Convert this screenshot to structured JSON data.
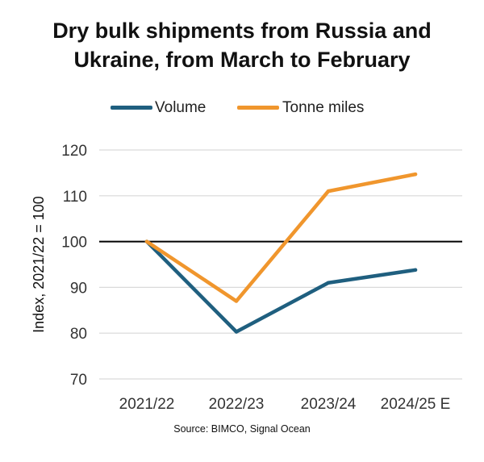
{
  "chart_data": {
    "type": "line",
    "title": "Dry bulk shipments from Russia and Ukraine, from March to February",
    "title_lines": [
      "Dry bulk shipments from Russia and",
      "Ukraine, from March to February"
    ],
    "categories": [
      "2021/22",
      "2022/23",
      "2023/24",
      "2024/25 E"
    ],
    "series": [
      {
        "name": "Volume",
        "color": "#1f5f7f",
        "values": [
          100,
          80.3,
          91,
          93.8
        ]
      },
      {
        "name": "Tonne miles",
        "color": "#f0962d",
        "values": [
          100,
          87,
          111,
          114.7
        ]
      }
    ],
    "ylabel": "Index, 2021/22 = 100",
    "xlabel": "",
    "ylim": [
      70,
      120
    ],
    "yticks": [
      120,
      110,
      100,
      90,
      80,
      70
    ],
    "reference_line": {
      "value": 100,
      "color": "#000000"
    },
    "grid": true,
    "legend_position": "top",
    "source": "Source: BIMCO, Signal Ocean"
  }
}
